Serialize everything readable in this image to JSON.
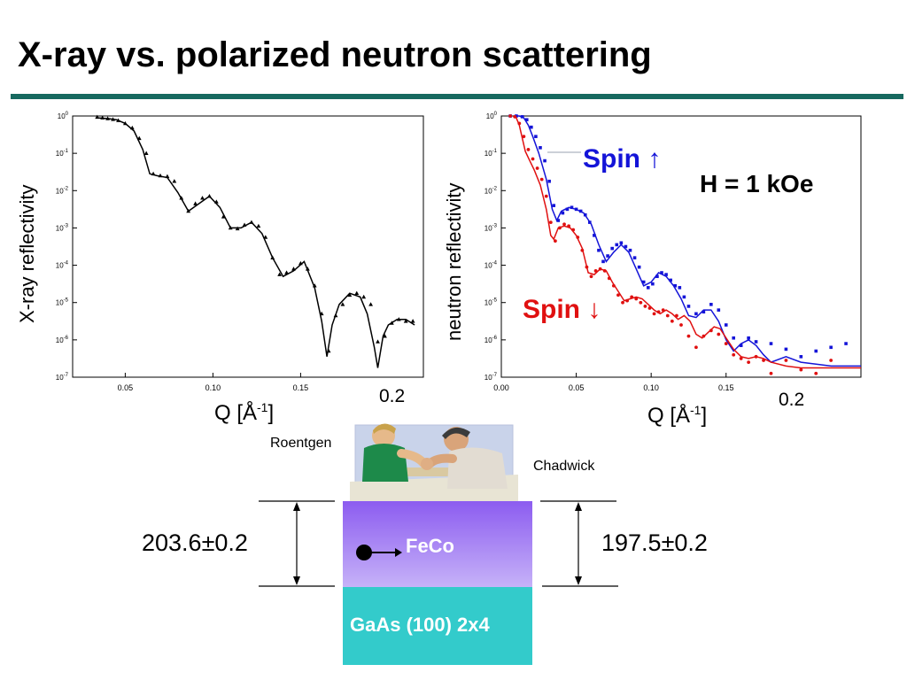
{
  "slide": {
    "title": "X-ray vs. polarized neutron scattering",
    "accent_color": "#17695f"
  },
  "labels": {
    "xray_ylabel": "X-ray reflectivity",
    "neutron_ylabel": "neutron reflectivity",
    "xlabel_main": "Q [Å",
    "xlabel_sup": "-1",
    "xlabel_end": "]",
    "x_extra_tick": "0.2",
    "spin_up": "Spin ↑",
    "spin_down": "Spin ↓",
    "field": "H = 1 kOe",
    "person_left": "Roentgen",
    "person_right": "Chadwick",
    "thickness_xray": "203.6±0.2",
    "thickness_neutron": "197.5±0.2",
    "layer_top": "FeCo",
    "layer_substrate": "GaAs (100) 2x4"
  },
  "chart_data": [
    {
      "type": "scatter",
      "name": "xray",
      "xlabel": "Q [Å-1]",
      "ylabel": "X-ray reflectivity",
      "xlim": [
        0.02,
        0.22
      ],
      "ylim": [
        -7,
        0
      ],
      "yscale": "log",
      "x_ticks": [
        0.05,
        0.1,
        0.15
      ],
      "x_tick_labels": [
        "0.05",
        "0.10",
        "0.15"
      ],
      "y_ticks": [
        0,
        -1,
        -2,
        -3,
        -4,
        -5,
        -6,
        -7
      ],
      "y_tick_labels": [
        "10^0",
        "10^-1",
        "10^-2",
        "10^-3",
        "10^-4",
        "10^-5",
        "10^-6",
        "10^-7"
      ],
      "grid": false,
      "series": [
        {
          "role": "fit",
          "style": "line",
          "color": "#000000",
          "x": [
            0.034,
            0.04,
            0.045,
            0.05,
            0.055,
            0.06,
            0.064,
            0.068,
            0.074,
            0.08,
            0.086,
            0.092,
            0.098,
            0.104,
            0.11,
            0.116,
            0.122,
            0.128,
            0.134,
            0.14,
            0.146,
            0.152,
            0.158,
            0.162,
            0.165,
            0.168,
            0.172,
            0.178,
            0.184,
            0.188,
            0.192,
            0.194,
            0.197,
            0.2,
            0.205,
            0.21,
            0.215
          ],
          "y": [
            -0.05,
            -0.07,
            -0.1,
            -0.2,
            -0.4,
            -0.9,
            -1.55,
            -1.6,
            -1.65,
            -2.05,
            -2.55,
            -2.35,
            -2.15,
            -2.45,
            -3.0,
            -3.0,
            -2.85,
            -3.15,
            -3.8,
            -4.3,
            -4.15,
            -3.9,
            -4.6,
            -5.5,
            -6.45,
            -5.6,
            -5.05,
            -4.75,
            -4.85,
            -5.3,
            -6.2,
            -6.75,
            -5.9,
            -5.6,
            -5.45,
            -5.45,
            -5.6
          ]
        },
        {
          "role": "data",
          "style": "triangle",
          "color": "#000000",
          "x": [
            0.034,
            0.037,
            0.04,
            0.043,
            0.046,
            0.05,
            0.054,
            0.058,
            0.062,
            0.066,
            0.07,
            0.074,
            0.078,
            0.082,
            0.086,
            0.09,
            0.094,
            0.098,
            0.102,
            0.106,
            0.11,
            0.114,
            0.118,
            0.122,
            0.126,
            0.13,
            0.134,
            0.138,
            0.142,
            0.146,
            0.15,
            0.154,
            0.158,
            0.162,
            0.166,
            0.17,
            0.174,
            0.178,
            0.182,
            0.186,
            0.19,
            0.194,
            0.198,
            0.202,
            0.206,
            0.21,
            0.214
          ],
          "y": [
            -0.03,
            -0.05,
            -0.07,
            -0.09,
            -0.12,
            -0.2,
            -0.32,
            -0.6,
            -1.0,
            -1.55,
            -1.6,
            -1.62,
            -1.75,
            -2.2,
            -2.55,
            -2.35,
            -2.2,
            -2.15,
            -2.3,
            -2.7,
            -3.0,
            -3.02,
            -2.92,
            -2.85,
            -2.95,
            -3.25,
            -3.8,
            -4.25,
            -4.2,
            -4.1,
            -3.95,
            -4.1,
            -4.55,
            -5.3,
            -6.3,
            -5.35,
            -5.05,
            -4.8,
            -4.75,
            -4.85,
            -5.05,
            -6.05,
            -5.9,
            -5.55,
            -5.45,
            -5.5,
            -5.5
          ]
        }
      ]
    },
    {
      "type": "scatter",
      "name": "neutron",
      "xlabel": "Q [Å-1]",
      "ylabel": "neutron reflectivity",
      "xlim": [
        0.0,
        0.24
      ],
      "ylim": [
        -7,
        0
      ],
      "yscale": "log",
      "x_ticks": [
        0.0,
        0.05,
        0.1,
        0.15
      ],
      "x_tick_labels": [
        "0.00",
        "0.05",
        "0.10",
        "0.15"
      ],
      "y_ticks": [
        0,
        -1,
        -2,
        -3,
        -4,
        -5,
        -6,
        -7
      ],
      "y_tick_labels": [
        "10^0",
        "10^-1",
        "10^-2",
        "10^-3",
        "10^-4",
        "10^-5",
        "10^-6",
        "10^-7"
      ],
      "grid": false,
      "series": [
        {
          "name": "Spin ↑",
          "role": "fit",
          "style": "line",
          "color": "#1414d8",
          "x": [
            0.008,
            0.012,
            0.015,
            0.018,
            0.021,
            0.025,
            0.03,
            0.034,
            0.037,
            0.04,
            0.045,
            0.05,
            0.055,
            0.06,
            0.065,
            0.07,
            0.075,
            0.08,
            0.085,
            0.09,
            0.095,
            0.1,
            0.105,
            0.11,
            0.115,
            0.12,
            0.125,
            0.13,
            0.135,
            0.14,
            0.145,
            0.15,
            0.155,
            0.16,
            0.165,
            0.17,
            0.175,
            0.18,
            0.19,
            0.2,
            0.21,
            0.22,
            0.23,
            0.24
          ],
          "y": [
            0.0,
            0.0,
            -0.05,
            -0.25,
            -0.55,
            -1.0,
            -1.7,
            -2.5,
            -2.8,
            -2.55,
            -2.45,
            -2.5,
            -2.6,
            -2.9,
            -3.45,
            -3.9,
            -3.65,
            -3.45,
            -3.65,
            -4.1,
            -4.55,
            -4.45,
            -4.2,
            -4.3,
            -4.55,
            -4.9,
            -5.35,
            -5.4,
            -5.2,
            -5.2,
            -5.5,
            -6.0,
            -6.3,
            -6.1,
            -6.0,
            -6.15,
            -6.4,
            -6.6,
            -6.45,
            -6.6,
            -6.65,
            -6.7,
            -6.7,
            -6.7
          ]
        },
        {
          "name": "Spin ↑",
          "role": "data",
          "style": "square",
          "color": "#1414d8",
          "x": [
            0.006,
            0.01,
            0.014,
            0.017,
            0.02,
            0.023,
            0.026,
            0.029,
            0.032,
            0.035,
            0.038,
            0.041,
            0.044,
            0.047,
            0.05,
            0.053,
            0.056,
            0.059,
            0.062,
            0.065,
            0.068,
            0.071,
            0.074,
            0.077,
            0.08,
            0.083,
            0.086,
            0.089,
            0.092,
            0.095,
            0.098,
            0.101,
            0.104,
            0.107,
            0.11,
            0.113,
            0.116,
            0.119,
            0.122,
            0.125,
            0.13,
            0.135,
            0.14,
            0.145,
            0.15,
            0.155,
            0.16,
            0.165,
            0.17,
            0.18,
            0.19,
            0.2,
            0.21,
            0.22,
            0.23
          ],
          "y": [
            0.0,
            0.0,
            -0.02,
            -0.1,
            -0.3,
            -0.55,
            -0.85,
            -1.2,
            -1.75,
            -2.4,
            -2.8,
            -2.6,
            -2.5,
            -2.45,
            -2.5,
            -2.55,
            -2.65,
            -2.85,
            -3.2,
            -3.6,
            -3.9,
            -3.75,
            -3.55,
            -3.45,
            -3.4,
            -3.5,
            -3.6,
            -3.8,
            -4.05,
            -4.45,
            -4.6,
            -4.5,
            -4.3,
            -4.2,
            -4.25,
            -4.4,
            -4.55,
            -4.6,
            -4.85,
            -5.1,
            -5.3,
            -5.25,
            -5.05,
            -5.2,
            -5.6,
            -5.95,
            -6.15,
            -5.95,
            -6.05,
            -6.1,
            -6.25,
            -6.45,
            -6.3,
            -6.2,
            -6.1
          ]
        },
        {
          "name": "Spin ↓",
          "role": "fit",
          "style": "line",
          "color": "#e01010",
          "x": [
            0.008,
            0.01,
            0.012,
            0.014,
            0.016,
            0.019,
            0.022,
            0.026,
            0.03,
            0.033,
            0.035,
            0.038,
            0.042,
            0.046,
            0.05,
            0.054,
            0.058,
            0.062,
            0.066,
            0.07,
            0.074,
            0.078,
            0.082,
            0.086,
            0.09,
            0.094,
            0.098,
            0.102,
            0.106,
            0.11,
            0.114,
            0.118,
            0.122,
            0.126,
            0.13,
            0.134,
            0.138,
            0.142,
            0.146,
            0.15,
            0.155,
            0.16,
            0.165,
            0.17,
            0.175,
            0.18,
            0.19,
            0.2,
            0.21,
            0.22,
            0.23,
            0.24
          ],
          "y": [
            0.0,
            -0.05,
            -0.25,
            -0.6,
            -0.95,
            -1.2,
            -1.45,
            -1.85,
            -2.5,
            -3.2,
            -3.3,
            -3.0,
            -2.95,
            -3.0,
            -3.2,
            -3.55,
            -4.2,
            -4.25,
            -4.1,
            -4.15,
            -4.45,
            -4.7,
            -4.95,
            -4.9,
            -4.85,
            -4.9,
            -5.05,
            -5.2,
            -5.3,
            -5.2,
            -5.3,
            -5.45,
            -5.35,
            -5.5,
            -5.85,
            -5.95,
            -5.8,
            -5.65,
            -5.7,
            -5.95,
            -6.25,
            -6.45,
            -6.5,
            -6.45,
            -6.5,
            -6.6,
            -6.7,
            -6.75,
            -6.75,
            -6.75,
            -6.75,
            -6.75
          ]
        },
        {
          "name": "Spin ↓",
          "role": "data",
          "style": "circle",
          "color": "#e01010",
          "x": [
            0.006,
            0.009,
            0.012,
            0.015,
            0.018,
            0.021,
            0.024,
            0.027,
            0.03,
            0.033,
            0.036,
            0.039,
            0.042,
            0.045,
            0.048,
            0.051,
            0.054,
            0.057,
            0.06,
            0.063,
            0.066,
            0.069,
            0.072,
            0.075,
            0.078,
            0.081,
            0.084,
            0.087,
            0.09,
            0.093,
            0.096,
            0.099,
            0.102,
            0.105,
            0.108,
            0.111,
            0.114,
            0.117,
            0.12,
            0.125,
            0.13,
            0.135,
            0.14,
            0.145,
            0.15,
            0.155,
            0.16,
            0.165,
            0.17,
            0.175,
            0.18,
            0.19,
            0.2,
            0.21,
            0.22
          ],
          "y": [
            0.0,
            -0.02,
            -0.2,
            -0.55,
            -0.9,
            -1.15,
            -1.4,
            -1.7,
            -2.15,
            -2.85,
            -3.35,
            -3.0,
            -2.9,
            -2.95,
            -3.05,
            -3.25,
            -3.6,
            -4.05,
            -4.3,
            -4.15,
            -4.1,
            -4.15,
            -4.35,
            -4.55,
            -4.8,
            -5.0,
            -4.95,
            -4.85,
            -4.9,
            -5.0,
            -5.1,
            -5.15,
            -5.3,
            -5.25,
            -5.2,
            -5.35,
            -5.5,
            -5.35,
            -5.6,
            -5.9,
            -6.2,
            -5.9,
            -5.75,
            -5.85,
            -6.1,
            -6.4,
            -6.5,
            -6.6,
            -6.45,
            -6.55,
            -6.9,
            -6.55,
            -6.8,
            -6.9,
            -6.55
          ]
        }
      ]
    }
  ]
}
